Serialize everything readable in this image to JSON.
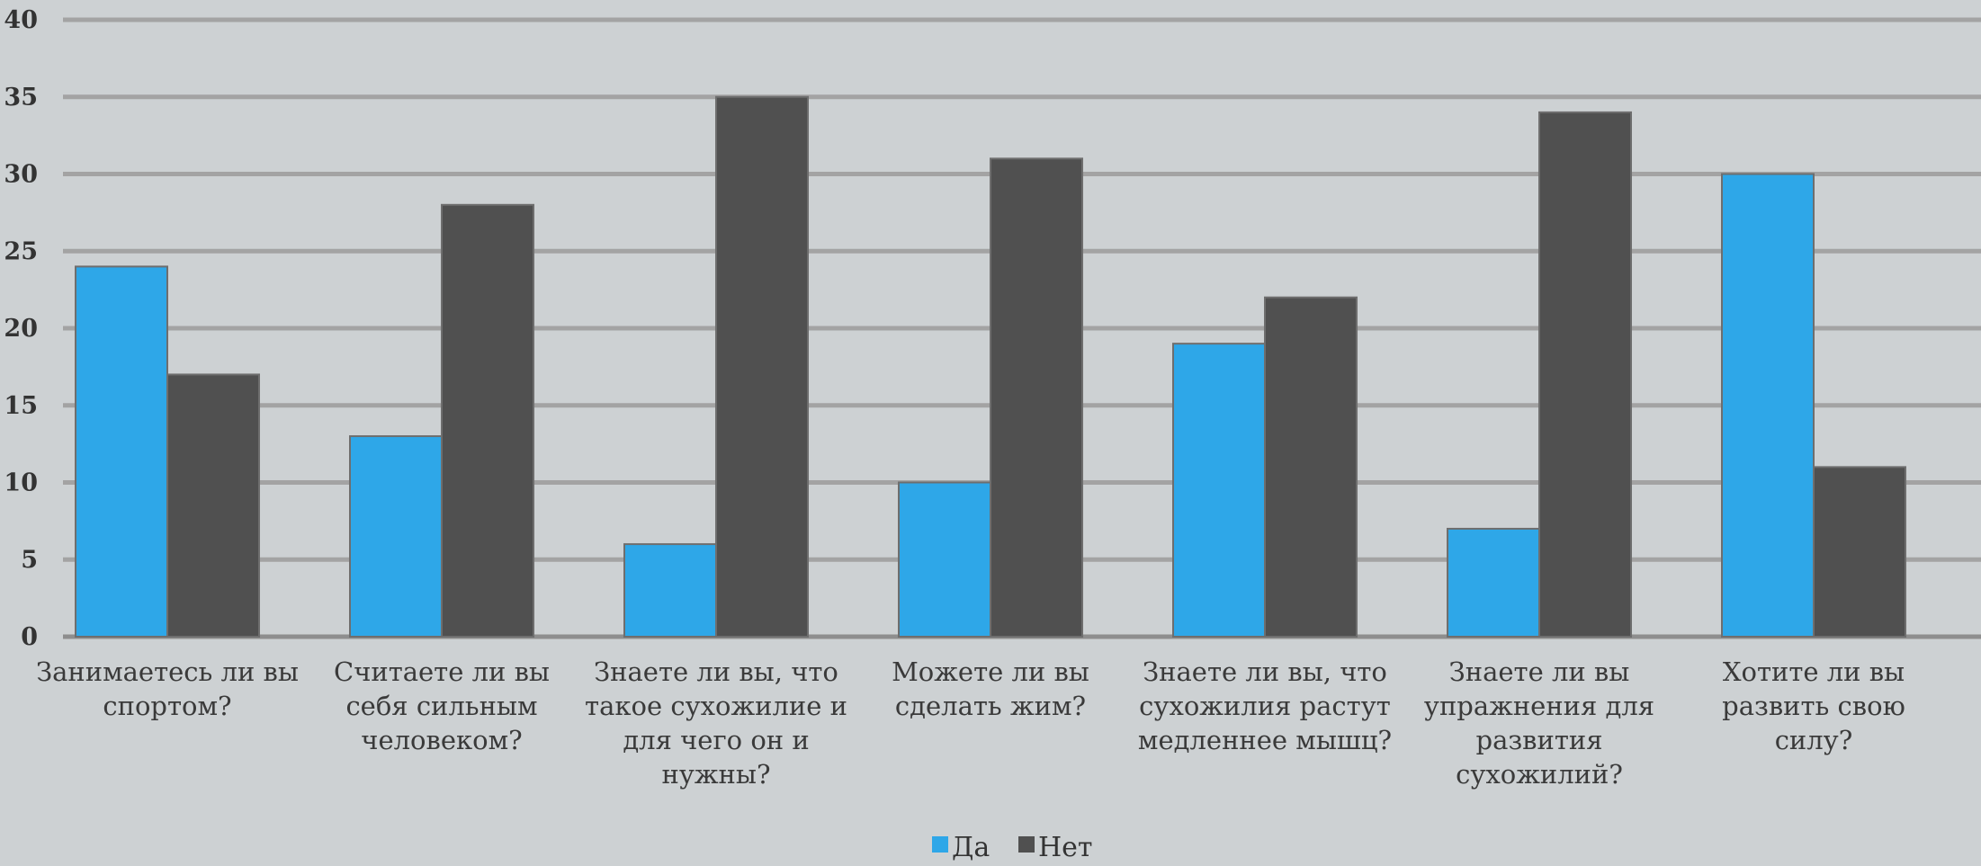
{
  "chart_data": {
    "type": "bar",
    "categories": [
      [
        "Занимаетесь ли вы",
        "спортом?"
      ],
      [
        "Считаете ли вы",
        "себя сильным",
        "человеком?"
      ],
      [
        "Знаете ли вы, что",
        "такое сухожилие и",
        "для чего он и",
        "нужны?"
      ],
      [
        "Можете ли вы",
        "сделать жим?"
      ],
      [
        "Знаете ли вы, что",
        "сухожилия растут",
        "медленнее мышц?"
      ],
      [
        "Знаете ли вы",
        "упражнения для",
        "развития",
        "сухожилий?"
      ],
      [
        "Хотите ли вы",
        "развить свою",
        "силу?"
      ]
    ],
    "series": [
      {
        "name": "Да",
        "color": "#2ea7e8",
        "values": [
          24,
          13,
          6,
          10,
          19,
          7,
          30
        ]
      },
      {
        "name": "Нет",
        "color": "#505050",
        "values": [
          17,
          28,
          35,
          31,
          22,
          34,
          11
        ]
      }
    ],
    "ylim": [
      0,
      40
    ],
    "yticks": [
      "0",
      "5",
      "10",
      "15",
      "20",
      "25",
      "30",
      "35",
      "40"
    ],
    "grid": true,
    "legend_position": "bottom-center",
    "title": "",
    "xlabel": "",
    "ylabel": ""
  }
}
